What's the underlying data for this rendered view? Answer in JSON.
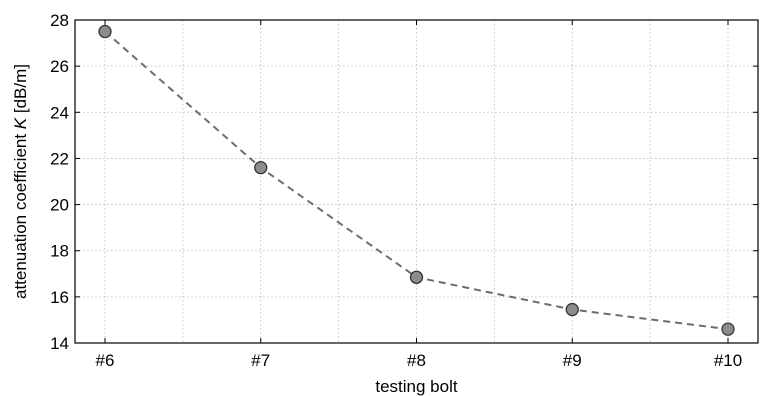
{
  "chart_data": {
    "type": "line",
    "title": "",
    "xlabel": "testing bolt",
    "ylabel": "attenuation coefficient K [dB/m]",
    "ylabel_parts": {
      "before": "attenuation coefficient ",
      "symbol": "K",
      "after": " [dB/m]"
    },
    "categories": [
      "#6",
      "#7",
      "#8",
      "#9",
      "#10"
    ],
    "series": [
      {
        "values": [
          27.5,
          21.6,
          16.85,
          15.45,
          14.6
        ]
      }
    ],
    "ylim": [
      14,
      28
    ],
    "yticks": [
      14,
      16,
      18,
      20,
      22,
      24,
      26,
      28
    ],
    "grid": true,
    "legend": "none",
    "line_style": "dashed",
    "line_color": "#6e6e6e",
    "marker_color": "#8c8c8c",
    "marker_edge_color": "#333333"
  }
}
